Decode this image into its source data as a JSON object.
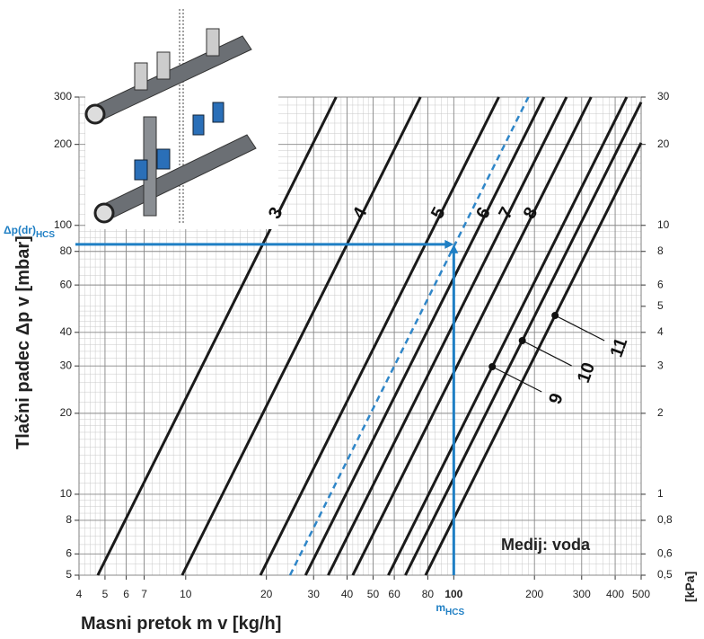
{
  "chart_data": {
    "type": "line",
    "x_label": "Masni pretok m v [kg/h]",
    "y_label": "Tlačni padec Δp v [mbar]",
    "y2_label": "[kPa]",
    "medium": "Medij: voda",
    "xlog": true,
    "ylog": true,
    "grid": true,
    "xlim": [
      4,
      500
    ],
    "ylim": [
      5,
      300
    ],
    "y2lim": [
      0.5,
      30
    ],
    "xticks": [
      4,
      5,
      6,
      7,
      10,
      20,
      30,
      40,
      50,
      60,
      80,
      100,
      200,
      300,
      400,
      500
    ],
    "yticks": [
      5,
      6,
      8,
      10,
      20,
      30,
      40,
      60,
      80,
      100,
      200,
      300
    ],
    "y2ticks": [
      {
        "value": 0.5,
        "label": "0,5"
      },
      {
        "value": 0.6,
        "label": "0,6"
      },
      {
        "value": 0.8,
        "label": "0,8"
      },
      1,
      2,
      3,
      4,
      5,
      6,
      8,
      10,
      20,
      30
    ],
    "series": [
      {
        "name": "3",
        "color": "#1a1a1a",
        "x": [
          4.7,
          36.4
        ],
        "values": [
          5,
          300
        ]
      },
      {
        "name": "4",
        "color": "#1a1a1a",
        "x": [
          9.7,
          75.1
        ],
        "values": [
          5,
          300
        ]
      },
      {
        "name": "5",
        "color": "#1a1a1a",
        "x": [
          19,
          147.2
        ],
        "values": [
          5,
          300
        ]
      },
      {
        "name": "6",
        "color": "#1a1a1a",
        "x": [
          28,
          216.9
        ],
        "values": [
          5,
          300
        ]
      },
      {
        "name": "7",
        "color": "#1a1a1a",
        "x": [
          34,
          263.4
        ],
        "values": [
          5,
          300
        ]
      },
      {
        "name": "8",
        "color": "#1a1a1a",
        "x": [
          42,
          325.3
        ],
        "values": [
          5,
          300
        ]
      },
      {
        "name": "9",
        "color": "#1a1a1a",
        "x": [
          57,
          441.5
        ],
        "values": [
          5,
          300
        ]
      },
      {
        "name": "10",
        "color": "#1a1a1a",
        "x": [
          66,
          500
        ],
        "values": [
          5,
          287
        ]
      },
      {
        "name": "11",
        "color": "#1a1a1a",
        "x": [
          78.5,
          500
        ],
        "values": [
          5,
          202.8
        ]
      },
      {
        "color": "#2f86c8",
        "dashed": true,
        "x": [
          24.5,
          189.8
        ],
        "values": [
          5,
          300
        ]
      }
    ],
    "marker": {
      "x": 100,
      "y": 85,
      "color": "#1f7fc4",
      "y_text": "Δp(dr)",
      "y_sub": "HCS",
      "x_text": "m",
      "x_sub": "HCS"
    }
  }
}
